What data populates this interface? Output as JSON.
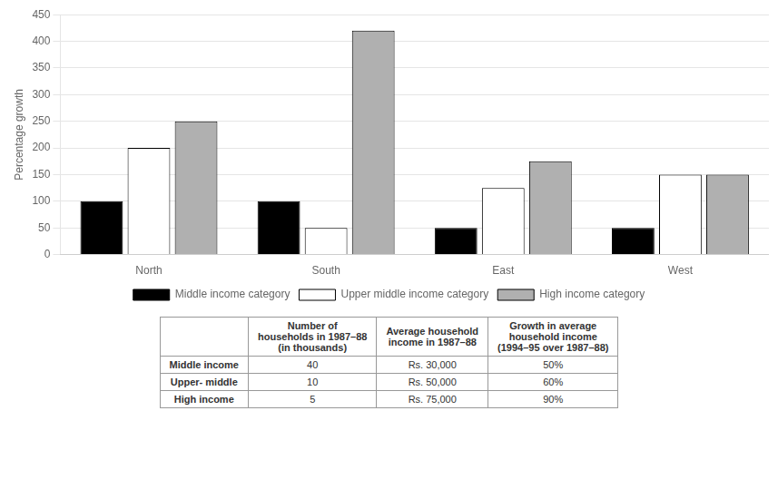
{
  "chart_data": {
    "type": "bar",
    "categories": [
      "North",
      "South",
      "East",
      "West"
    ],
    "series": [
      {
        "name": "Middle income category",
        "color": "#000000",
        "values": [
          100,
          100,
          50,
          50
        ]
      },
      {
        "name": "Upper middle income category",
        "color": "#ffffff",
        "values": [
          200,
          50,
          125,
          150
        ]
      },
      {
        "name": "High income category",
        "color": "#b0b0b0",
        "values": [
          250,
          420,
          175,
          150
        ]
      }
    ],
    "y_label": "Percentage growth",
    "ylim": [
      0,
      450
    ],
    "yticks": [
      0,
      50,
      100,
      150,
      200,
      250,
      300,
      350,
      400,
      450
    ],
    "grid": true,
    "legend": "bottom"
  },
  "table": {
    "headers": [
      null,
      "Number of\nhouseholds in 1987–88\n(in thousands)",
      "Average household\nincome in 1987–88",
      "Growth in average\nhousehold income\n(1994–95 over 1987–88)"
    ],
    "rows": [
      [
        "Middle income",
        "40",
        "Rs. 30,000",
        "50%"
      ],
      [
        "Upper- middle",
        "10",
        "Rs. 50,000",
        "60%"
      ],
      [
        "High income",
        "5",
        "Rs. 75,000",
        "90%"
      ]
    ]
  }
}
